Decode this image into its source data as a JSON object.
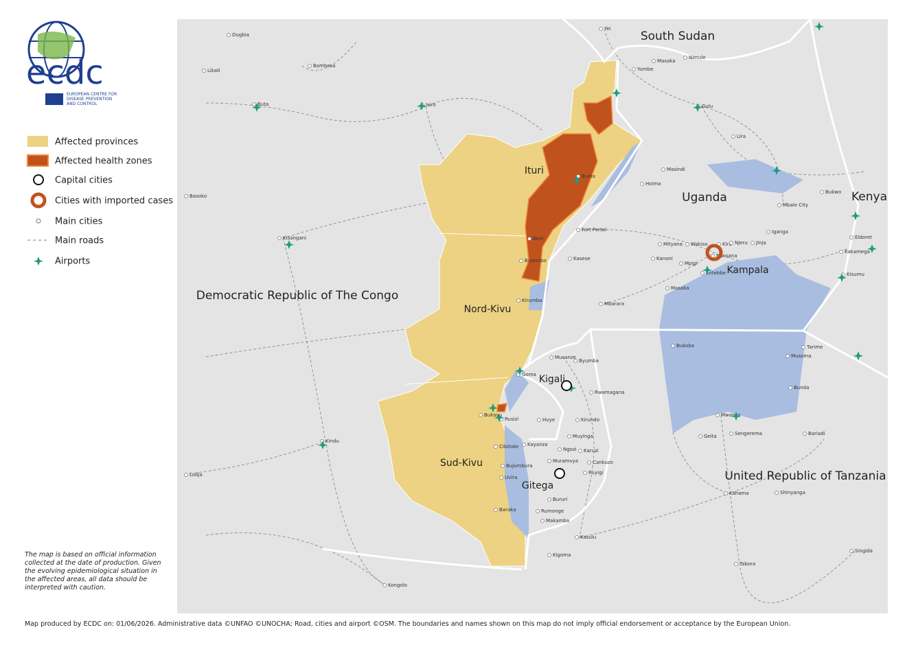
{
  "logo": {
    "name": "ecdc",
    "line1": "EUROPEAN CENTRE FOR",
    "line2": "DISEASE PREVENTION",
    "line3": "AND CONTROL"
  },
  "legend": [
    "Affected provinces",
    "Affected health zones",
    "Capital cities",
    "Cities with imported cases",
    "Main cities",
    "Main roads",
    "Airports"
  ],
  "countries": [
    "South Sudan",
    "Uganda",
    "Kenya",
    "Democratic Republic of The Congo",
    "United Republic of Tanzania"
  ],
  "provinces": [
    "Ituri",
    "Nord-Kivu",
    "Sud-Kivu"
  ],
  "capitals": [
    "Kampala",
    "Kigali",
    "Gitega"
  ],
  "cities": [
    "Dugbia",
    "Likati",
    "Bambesa",
    "Buta",
    "Isiro",
    "Basoko",
    "Kisangani",
    "Lodja",
    "Kindu",
    "Kongolo",
    "Yei",
    "Nimule",
    "Masaka",
    "Yumbe",
    "Gulu",
    "Lira",
    "Masindi",
    "Hoima",
    "Bunia",
    "Fort Portal",
    "Beni",
    "Butembo",
    "Kasese",
    "Kirumba",
    "Mbarara",
    "Mityana",
    "Wakiso",
    "Kira",
    "Njeru",
    "Jinja",
    "Iganga",
    "Mbale City",
    "Bukwo",
    "Eldoret",
    "Kakamega",
    "Kisumu",
    "Kanoni",
    "Mpigi",
    "Entebbe",
    "Nansana",
    "Masaka",
    "Bukoba",
    "Tarime",
    "Musoma",
    "Bunda",
    "Goma",
    "Musanze",
    "Byumba",
    "Rwamagana",
    "Bukavu",
    "Rusizi",
    "Kirundo",
    "Muyinga",
    "Huye",
    "Cibitoke",
    "Kayanza",
    "Ngozi",
    "Karuzi",
    "Muramvya",
    "Cankuzo",
    "Bujumbura",
    "Ruyigi",
    "Uvira",
    "Bururi",
    "Rumonge",
    "Makamba",
    "Baraka",
    "Kasulu",
    "Kigoma",
    "Mwanza",
    "Geita",
    "Sengerema",
    "Bariadi",
    "Kahama",
    "Shinyanga",
    "Singida",
    "Tabora"
  ],
  "disclaimer": "The map is based on official information collected at the date of production. Given the evolving epidemiological situation in the affected areas, all data should be interpreted with caution.",
  "footer": "Map produced by ECDC on: 01/06/2026. Administrative data ©UNFAO  ©UNOCHA;  Road, cities and airport ©OSM. The boundaries and names shown on this map do not imply official endorsement or acceptance by the European Union."
}
